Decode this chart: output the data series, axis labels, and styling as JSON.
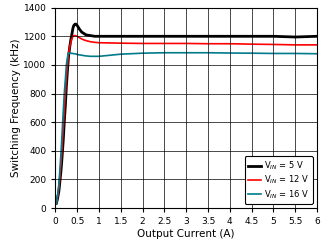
{
  "title": "",
  "xlabel": "Output Current (A)",
  "ylabel": "Switching Frequency (kHz)",
  "xlim": [
    0,
    6
  ],
  "ylim": [
    0,
    1400
  ],
  "xticks": [
    0,
    0.5,
    1,
    1.5,
    2,
    2.5,
    3,
    3.5,
    4,
    4.5,
    5,
    5.5,
    6
  ],
  "yticks": [
    0,
    200,
    400,
    600,
    800,
    1000,
    1200,
    1400
  ],
  "legend": [
    {
      "label": "V$_{IN}$ = 5 V",
      "color": "#000000",
      "lw": 2.0
    },
    {
      "label": "V$_{IN}$ = 12 V",
      "color": "#ff0000",
      "lw": 1.2
    },
    {
      "label": "V$_{IN}$ = 16 V",
      "color": "#007b8a",
      "lw": 1.2
    }
  ],
  "series": {
    "vin5": {
      "color": "#000000",
      "lw": 2.0,
      "x": [
        0.02,
        0.05,
        0.08,
        0.1,
        0.13,
        0.15,
        0.18,
        0.2,
        0.23,
        0.25,
        0.28,
        0.3,
        0.33,
        0.35,
        0.38,
        0.4,
        0.42,
        0.45,
        0.47,
        0.5,
        0.55,
        0.6,
        0.65,
        0.7,
        0.8,
        0.9,
        1.0,
        1.5,
        2.0,
        2.5,
        3.0,
        3.5,
        4.0,
        4.1,
        4.5,
        5.0,
        5.5,
        6.0
      ],
      "y": [
        30,
        70,
        120,
        180,
        270,
        350,
        480,
        590,
        730,
        850,
        980,
        1060,
        1130,
        1170,
        1220,
        1255,
        1275,
        1285,
        1285,
        1275,
        1250,
        1230,
        1220,
        1210,
        1205,
        1200,
        1200,
        1200,
        1200,
        1200,
        1200,
        1200,
        1200,
        1200,
        1200,
        1200,
        1195,
        1200
      ]
    },
    "vin12": {
      "color": "#ff0000",
      "lw": 1.2,
      "x": [
        0.02,
        0.05,
        0.08,
        0.1,
        0.13,
        0.15,
        0.18,
        0.2,
        0.23,
        0.25,
        0.28,
        0.3,
        0.33,
        0.35,
        0.38,
        0.4,
        0.42,
        0.45,
        0.47,
        0.5,
        0.55,
        0.6,
        0.65,
        0.7,
        0.8,
        0.9,
        1.0,
        1.5,
        2.0,
        2.5,
        3.0,
        3.5,
        4.0,
        4.5,
        5.0,
        5.5,
        6.0
      ],
      "y": [
        30,
        80,
        140,
        210,
        320,
        410,
        560,
        670,
        810,
        910,
        1010,
        1080,
        1130,
        1155,
        1185,
        1200,
        1205,
        1205,
        1203,
        1200,
        1190,
        1182,
        1175,
        1170,
        1162,
        1158,
        1155,
        1152,
        1150,
        1150,
        1150,
        1148,
        1148,
        1145,
        1143,
        1140,
        1140
      ]
    },
    "vin16": {
      "color": "#007b8a",
      "lw": 1.2,
      "x": [
        0.02,
        0.05,
        0.08,
        0.1,
        0.13,
        0.15,
        0.18,
        0.2,
        0.23,
        0.25,
        0.28,
        0.3,
        0.33,
        0.35,
        0.38,
        0.4,
        0.42,
        0.45,
        0.47,
        0.5,
        0.55,
        0.6,
        0.65,
        0.7,
        0.8,
        0.9,
        1.0,
        1.5,
        2.0,
        2.5,
        3.0,
        3.5,
        4.0,
        4.5,
        5.0,
        5.5,
        6.0
      ],
      "y": [
        30,
        90,
        170,
        260,
        400,
        510,
        680,
        790,
        910,
        1000,
        1060,
        1082,
        1082,
        1082,
        1080,
        1080,
        1078,
        1078,
        1076,
        1073,
        1070,
        1068,
        1065,
        1063,
        1060,
        1060,
        1060,
        1075,
        1082,
        1085,
        1085,
        1085,
        1083,
        1082,
        1080,
        1080,
        1078
      ]
    }
  },
  "grid_color": "#000000",
  "background_color": "#ffffff",
  "legend_fontsize": 6.0,
  "axis_label_fontsize": 7.5,
  "tick_fontsize": 6.5
}
